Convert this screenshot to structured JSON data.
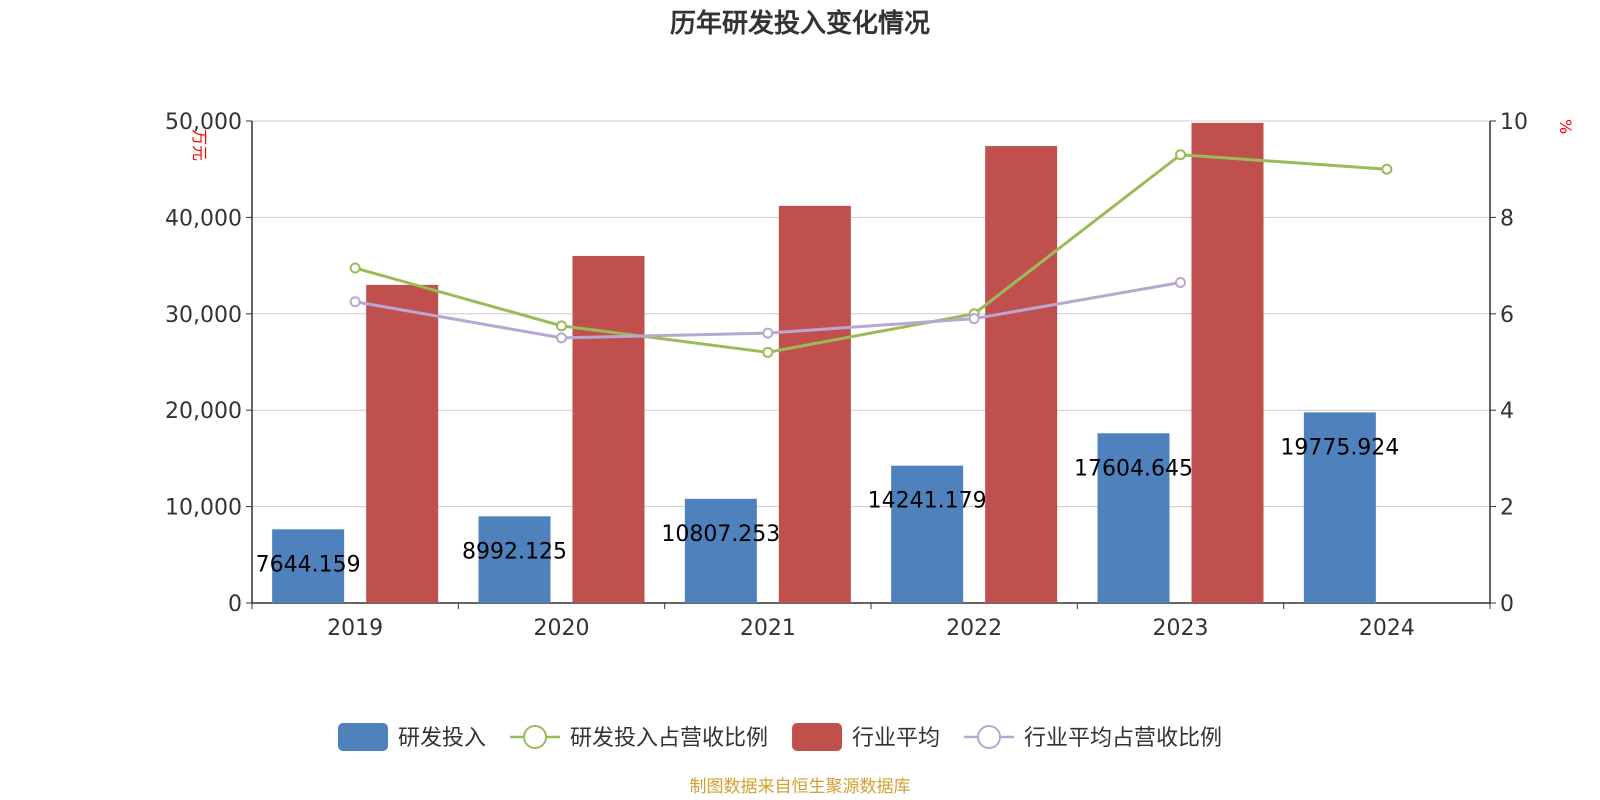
{
  "chart_data": {
    "type": "bar",
    "title": "历年研发投入变化情况",
    "categories": [
      "2019",
      "2020",
      "2021",
      "2022",
      "2023",
      "2024"
    ],
    "y_left": {
      "unit": "万元",
      "range": [
        0,
        50000
      ],
      "ticks": [
        0,
        10000,
        20000,
        30000,
        40000,
        50000
      ],
      "tick_labels": [
        "0",
        "10,000",
        "20,000",
        "30,000",
        "40,000",
        "50,000"
      ]
    },
    "y_right": {
      "unit": "%",
      "range": [
        0,
        10
      ],
      "ticks": [
        0,
        2,
        4,
        6,
        8,
        10
      ],
      "tick_labels": [
        "0",
        "2",
        "4",
        "6",
        "8",
        "10"
      ]
    },
    "grid": true,
    "legend_position": "bottom",
    "series": [
      {
        "name": "研发投入",
        "type": "bar",
        "axis": "left",
        "color": "#4f81bd",
        "values": [
          7644.159,
          8992.125,
          10807.253,
          14241.179,
          17604.645,
          19775.924
        ],
        "labels": [
          "7644.159",
          "8992.125",
          "10807.253",
          "14241.179",
          "17604.645",
          "19775.924"
        ]
      },
      {
        "name": "研发投入占营收比例",
        "type": "line",
        "axis": "right",
        "color": "#9bbb59",
        "values": [
          6.95,
          5.75,
          5.2,
          6.0,
          9.3,
          9.0
        ]
      },
      {
        "name": "行业平均",
        "type": "bar",
        "axis": "left",
        "color": "#c0504d",
        "values": [
          33000,
          36000,
          41200,
          47400,
          49800,
          null
        ]
      },
      {
        "name": "行业平均占营收比例",
        "type": "line",
        "axis": "right",
        "color": "#b7a7d1",
        "values": [
          6.25,
          5.5,
          5.6,
          5.9,
          6.65,
          null
        ]
      }
    ]
  },
  "footer": {
    "source": "制图数据来自恒生聚源数据库"
  }
}
